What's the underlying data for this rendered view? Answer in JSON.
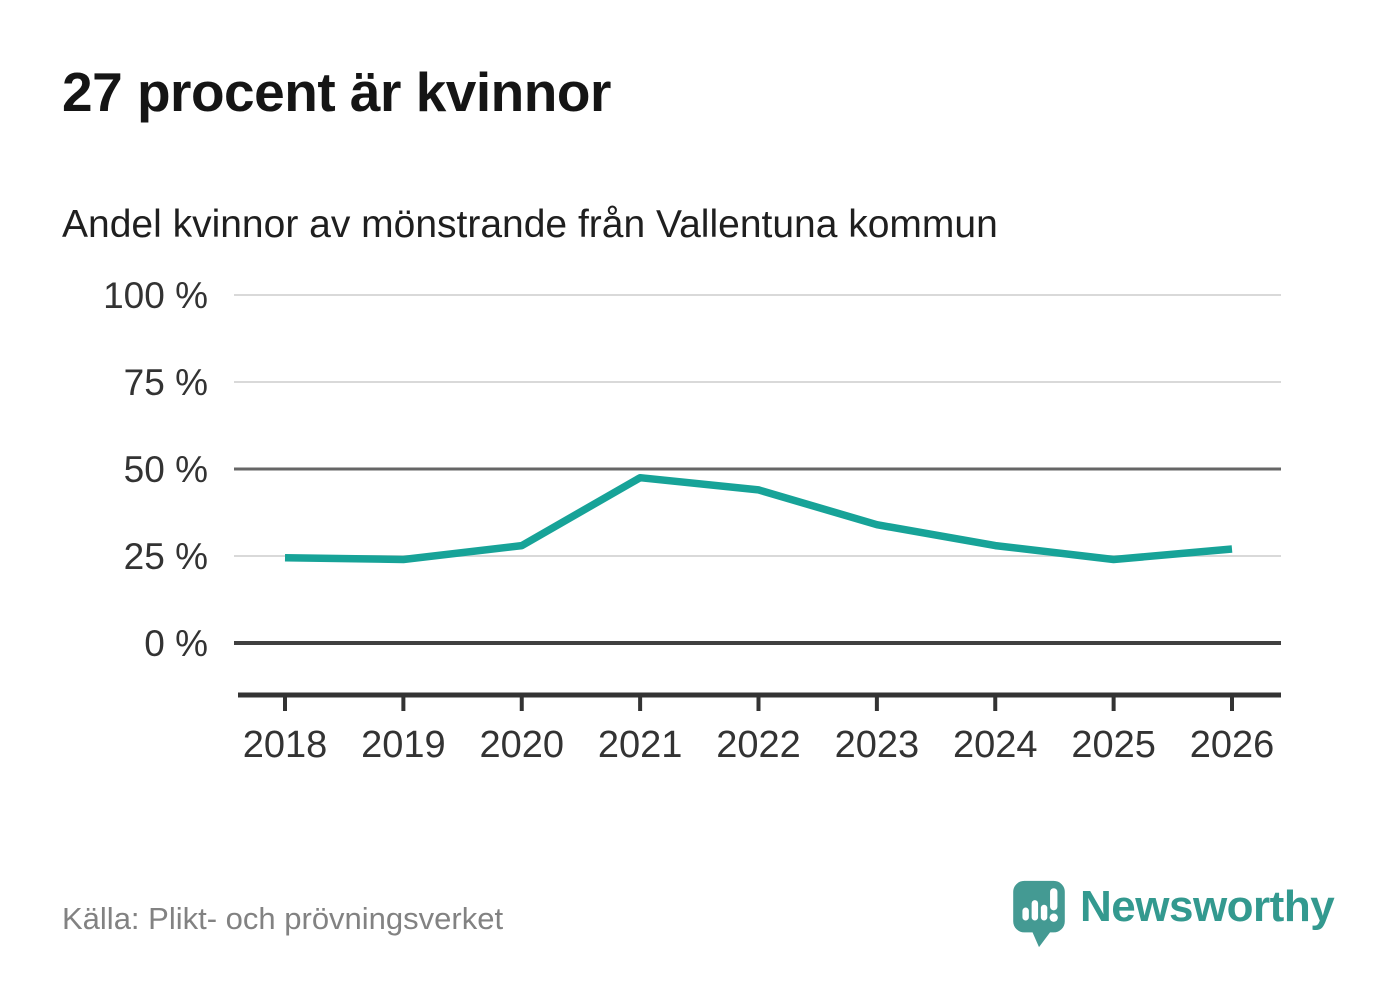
{
  "header": {
    "title": "27 procent är kvinnor",
    "subtitle": "Andel kvinnor av mönstrande från Vallentuna kommun"
  },
  "chart_data": {
    "type": "line",
    "x": [
      2018,
      2019,
      2020,
      2021,
      2022,
      2023,
      2024,
      2025,
      2026
    ],
    "series": [
      {
        "name": "Andel kvinnor av mönstrande",
        "values": [
          24.5,
          24,
          28,
          47.5,
          44,
          34,
          28,
          24,
          27
        ]
      }
    ],
    "title": "27 procent är kvinnor",
    "subtitle": "Andel kvinnor av mönstrande från Vallentuna kommun",
    "xlabel": "",
    "ylabel": "",
    "ylim": [
      0,
      100
    ],
    "yticks": [
      0,
      25,
      50,
      75,
      100
    ],
    "ytick_labels": [
      "0 %",
      "25 %",
      "50 %",
      "75 %",
      "100 %"
    ],
    "xtick_labels": [
      "2018",
      "2019",
      "2020",
      "2021",
      "2022",
      "2023",
      "2024",
      "2025",
      "2026"
    ],
    "grid": true,
    "legend": false,
    "line_color": "#17A398"
  },
  "colors": {
    "line": "#17A398",
    "grid_light": "#d9d9d9",
    "grid_mid": "#666666",
    "zero_line": "#404040",
    "axis": "#333333",
    "tick_text": "#333333",
    "brand_teal": "#33998F",
    "logo_teal": "#449A93"
  },
  "footer": {
    "source": "Källa: Plikt- och prövningsverket",
    "brand": "Newsworthy"
  }
}
